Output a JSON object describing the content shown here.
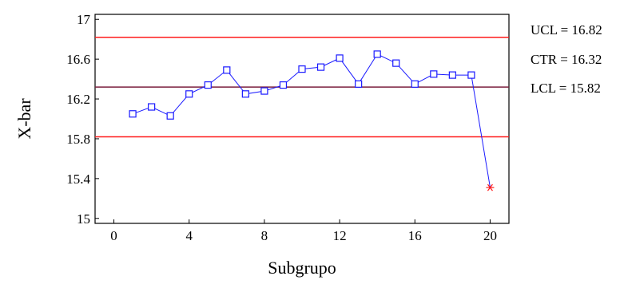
{
  "chart_data": {
    "type": "line",
    "title": "",
    "xlabel": "Subgrupo",
    "ylabel": "X-bar",
    "xlim": [
      -1,
      21
    ],
    "ylim": [
      14.95,
      17.05
    ],
    "x_ticks": [
      0,
      4,
      8,
      12,
      16,
      20
    ],
    "y_ticks": [
      15,
      15.4,
      15.8,
      16.2,
      16.6,
      17
    ],
    "x_tick_labels": [
      "0",
      "4",
      "8",
      "12",
      "16",
      "20"
    ],
    "y_tick_labels": [
      "15",
      "15.4",
      "15.8",
      "16.2",
      "16.6",
      "17"
    ],
    "grid": false,
    "series": [
      {
        "x": [
          1,
          2,
          3,
          4,
          5,
          6,
          7,
          8,
          9,
          10,
          11,
          12,
          13,
          14,
          15,
          16,
          17,
          18,
          19,
          20
        ],
        "values": [
          16.05,
          16.12,
          16.03,
          16.25,
          16.34,
          16.49,
          16.25,
          16.28,
          16.34,
          16.5,
          16.52,
          16.61,
          16.35,
          16.65,
          16.56,
          16.35,
          16.45,
          16.44,
          16.44,
          15.31
        ],
        "out_of_control": [
          20
        ]
      }
    ],
    "control_limits": [
      {
        "label": "UCL = 16.82",
        "value": 16.82,
        "color": "#ff1a1a"
      },
      {
        "label": "CTR = 16.32",
        "value": 16.32,
        "color": "#7a1f3d"
      },
      {
        "label": "LCL = 15.82",
        "value": 15.82,
        "color": "#ff1a1a"
      }
    ],
    "colors": {
      "series": "#1a1aff",
      "out_of_control_marker": "#ff1a1a",
      "frame": "#000000"
    }
  }
}
